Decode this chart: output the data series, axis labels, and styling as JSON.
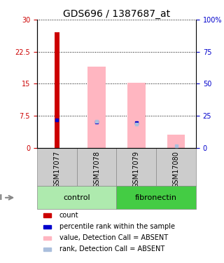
{
  "title": "GDS696 / 1387687_at",
  "samples": [
    "GSM17077",
    "GSM17078",
    "GSM17079",
    "GSM17080"
  ],
  "groups": [
    "control",
    "control",
    "fibronectin",
    "fibronectin"
  ],
  "bar_width": 0.45,
  "red_bar_width": 0.13,
  "ylim_left": [
    0,
    30
  ],
  "ylim_right": [
    0,
    100
  ],
  "yticks_left": [
    0,
    7.5,
    15,
    22.5,
    30
  ],
  "ytick_labels_left": [
    "0",
    "7.5",
    "15",
    "22.5",
    "30"
  ],
  "ytick_labels_right": [
    "0",
    "25",
    "50",
    "75",
    "100%"
  ],
  "red_bars": [
    27.0,
    0,
    0,
    0
  ],
  "pink_bars": [
    0,
    19.0,
    15.2,
    3.0
  ],
  "blue_vals": [
    6.5,
    6.0,
    5.8,
    0
  ],
  "light_blue_vals": [
    0,
    6.2,
    5.5,
    0.5
  ],
  "red_color": "#CC0000",
  "pink_color": "#FFB6C1",
  "blue_color": "#0000CC",
  "light_blue_color": "#AABFDD",
  "left_tick_color": "#CC0000",
  "right_tick_color": "#0000CC",
  "control_color": "#AEEAAE",
  "fibronectin_color": "#44CC44",
  "sample_bg_color": "#CCCCCC",
  "title_fontsize": 10,
  "tick_fontsize": 7,
  "sample_fontsize": 7,
  "group_fontsize": 8,
  "legend_fontsize": 7,
  "legend_items": [
    {
      "label": "count",
      "color": "#CC0000"
    },
    {
      "label": "percentile rank within the sample",
      "color": "#0000CC"
    },
    {
      "label": "value, Detection Call = ABSENT",
      "color": "#FFB6C1"
    },
    {
      "label": "rank, Detection Call = ABSENT",
      "color": "#AABFDD"
    }
  ]
}
